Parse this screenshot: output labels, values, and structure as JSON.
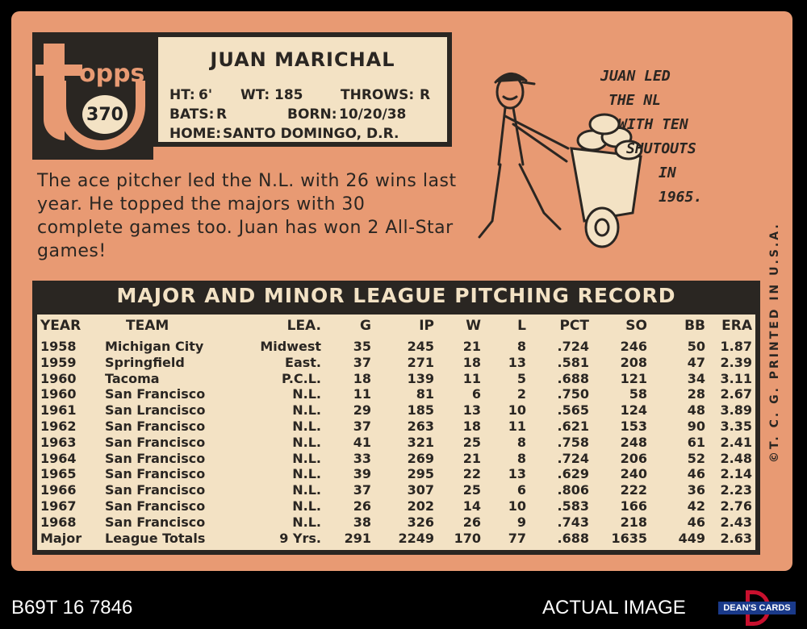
{
  "card": {
    "brand": "opps",
    "card_number": "370",
    "player": {
      "name": "JUAN MARICHAL",
      "ht_label": "HT:",
      "ht": "6'",
      "wt_label": "WT:",
      "wt": "185",
      "throws_label": "THROWS:",
      "throws": "R",
      "bats_label": "BATS:",
      "bats": "R",
      "born_label": "BORN:",
      "born": "10/20/38",
      "home_label": "HOME:",
      "home": "SANTO DOMINGO, D.R."
    },
    "blurb": "The ace pitcher led the N.L. with 26 wins last year. He topped the majors with 30 complete games too. Juan has won 2 All-Star games!",
    "cartoon_caption": [
      "JUAN LED",
      "THE NL",
      "WITH TEN",
      "SHUTOUTS",
      "IN",
      "1965."
    ],
    "side_text": "©T. C. G. PRINTED IN U.S.A.",
    "table": {
      "title": "MAJOR AND MINOR LEAGUE PITCHING RECORD",
      "headers": [
        "YEAR",
        "TEAM",
        "LEA.",
        "G",
        "IP",
        "W",
        "L",
        "PCT",
        "SO",
        "BB",
        "ERA"
      ],
      "rows": [
        [
          "1958",
          "Michigan City",
          "Midwest",
          "35",
          "245",
          "21",
          "8",
          ".724",
          "246",
          "50",
          "1.87"
        ],
        [
          "1959",
          "Springfield",
          "East.",
          "37",
          "271",
          "18",
          "13",
          ".581",
          "208",
          "47",
          "2.39"
        ],
        [
          "1960",
          "Tacoma",
          "P.C.L.",
          "18",
          "139",
          "11",
          "5",
          ".688",
          "121",
          "34",
          "3.11"
        ],
        [
          "1960",
          "San Francisco",
          "N.L.",
          "11",
          "81",
          "6",
          "2",
          ".750",
          "58",
          "28",
          "2.67"
        ],
        [
          "1961",
          "San Lrancisco",
          "N.L.",
          "29",
          "185",
          "13",
          "10",
          ".565",
          "124",
          "48",
          "3.89"
        ],
        [
          "1962",
          "San Francisco",
          "N.L.",
          "37",
          "263",
          "18",
          "11",
          ".621",
          "153",
          "90",
          "3.35"
        ],
        [
          "1963",
          "San Francisco",
          "N.L.",
          "41",
          "321",
          "25",
          "8",
          ".758",
          "248",
          "61",
          "2.41"
        ],
        [
          "1964",
          "San Francisco",
          "N.L.",
          "33",
          "269",
          "21",
          "8",
          ".724",
          "206",
          "52",
          "2.48"
        ],
        [
          "1965",
          "San Francisco",
          "N.L.",
          "39",
          "295",
          "22",
          "13",
          ".629",
          "240",
          "46",
          "2.14"
        ],
        [
          "1966",
          "San Francisco",
          "N.L.",
          "37",
          "307",
          "25",
          "6",
          ".806",
          "222",
          "36",
          "2.23"
        ],
        [
          "1967",
          "San Francisco",
          "N.L.",
          "26",
          "202",
          "14",
          "10",
          ".583",
          "166",
          "42",
          "2.76"
        ],
        [
          "1968",
          "San Francisco",
          "N.L.",
          "38",
          "326",
          "26",
          "9",
          ".743",
          "218",
          "46",
          "2.43"
        ],
        [
          "Major",
          "League Totals",
          "9 Yrs.",
          "291",
          "2249",
          "170",
          "77",
          ".688",
          "1635",
          "449",
          "2.63"
        ]
      ]
    }
  },
  "footer": {
    "cert_id": "B69T 16 7846",
    "label": "ACTUAL IMAGE",
    "logo_text": "DEAN'S CARDS"
  },
  "colors": {
    "card_orange": "#e89a73",
    "ink": "#2a2622",
    "cream": "#f3e2c4"
  }
}
